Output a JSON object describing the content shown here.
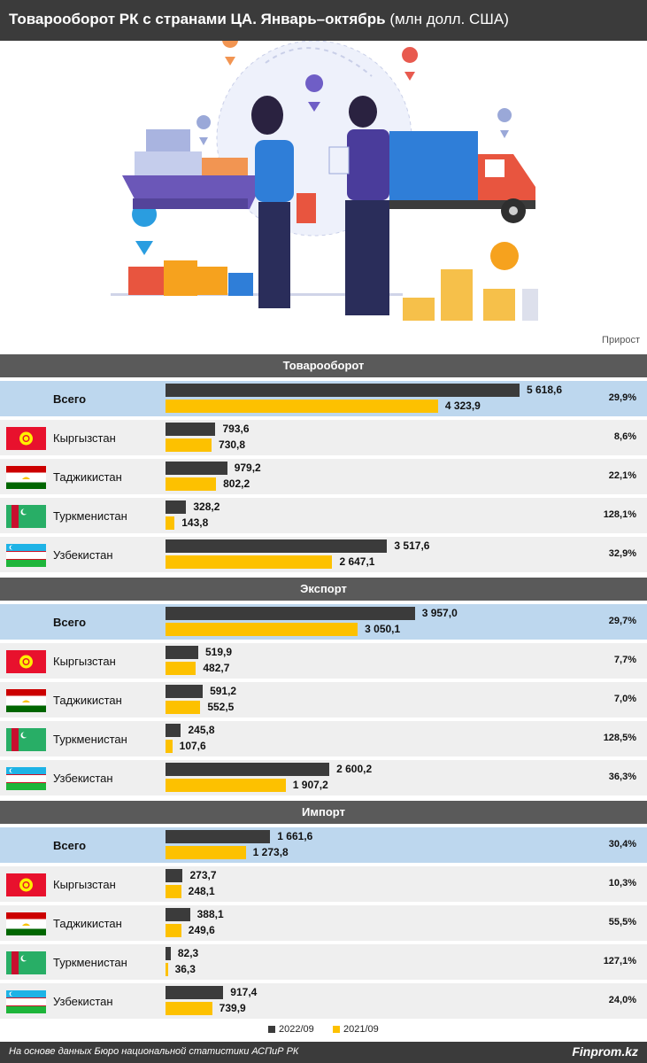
{
  "header": {
    "title": "Товарооборот РК с странами ЦА. Январь–октябрь",
    "unit": "(млн долл. США)"
  },
  "growth_label": "Прирост",
  "legend": {
    "series_a": "2022/09",
    "series_b": "2021/09"
  },
  "footer": {
    "source": "На основе данных Бюро национальной статистики АСПиР РК",
    "brand": "Finprom.kz"
  },
  "colors": {
    "series_a": "#3b3b3b",
    "series_b": "#fdc100",
    "total_row": "#bdd7ee",
    "row": "#efefef",
    "section": "#5a5a5a"
  },
  "chart_data": {
    "type": "bar",
    "orientation": "horizontal",
    "series_names": [
      "2022/09",
      "2021/09"
    ],
    "sections": [
      {
        "title": "Товарооборот",
        "rows": [
          {
            "label": "Всего",
            "total": true,
            "flag": "",
            "v2022": 5618.6,
            "v2021": 4323.9,
            "v2022_label": "5 618,6",
            "v2021_label": "4 323,9",
            "growth": "29,9%"
          },
          {
            "label": "Кыргызстан",
            "flag": "kg",
            "v2022": 793.6,
            "v2021": 730.8,
            "v2022_label": "793,6",
            "v2021_label": "730,8",
            "growth": "8,6%"
          },
          {
            "label": "Таджикистан",
            "flag": "tj",
            "v2022": 979.2,
            "v2021": 802.2,
            "v2022_label": "979,2",
            "v2021_label": "802,2",
            "growth": "22,1%"
          },
          {
            "label": "Туркменистан",
            "flag": "tm",
            "v2022": 328.2,
            "v2021": 143.8,
            "v2022_label": "328,2",
            "v2021_label": "143,8",
            "growth": "128,1%"
          },
          {
            "label": "Узбекистан",
            "flag": "uz",
            "v2022": 3517.6,
            "v2021": 2647.1,
            "v2022_label": "3 517,6",
            "v2021_label": "2 647,1",
            "growth": "32,9%"
          }
        ]
      },
      {
        "title": "Экспорт",
        "rows": [
          {
            "label": "Всего",
            "total": true,
            "flag": "",
            "v2022": 3957.0,
            "v2021": 3050.1,
            "v2022_label": "3 957,0",
            "v2021_label": "3 050,1",
            "growth": "29,7%"
          },
          {
            "label": "Кыргызстан",
            "flag": "kg",
            "v2022": 519.9,
            "v2021": 482.7,
            "v2022_label": "519,9",
            "v2021_label": "482,7",
            "growth": "7,7%"
          },
          {
            "label": "Таджикистан",
            "flag": "tj",
            "v2022": 591.2,
            "v2021": 552.5,
            "v2022_label": "591,2",
            "v2021_label": "552,5",
            "growth": "7,0%"
          },
          {
            "label": "Туркменистан",
            "flag": "tm",
            "v2022": 245.8,
            "v2021": 107.6,
            "v2022_label": "245,8",
            "v2021_label": "107,6",
            "growth": "128,5%"
          },
          {
            "label": "Узбекистан",
            "flag": "uz",
            "v2022": 2600.2,
            "v2021": 1907.2,
            "v2022_label": "2 600,2",
            "v2021_label": "1 907,2",
            "growth": "36,3%"
          }
        ]
      },
      {
        "title": "Импорт",
        "rows": [
          {
            "label": "Всего",
            "total": true,
            "flag": "",
            "v2022": 1661.6,
            "v2021": 1273.8,
            "v2022_label": "1 661,6",
            "v2021_label": "1 273,8",
            "growth": "30,4%"
          },
          {
            "label": "Кыргызстан",
            "flag": "kg",
            "v2022": 273.7,
            "v2021": 248.1,
            "v2022_label": "273,7",
            "v2021_label": "248,1",
            "growth": "10,3%"
          },
          {
            "label": "Таджикистан",
            "flag": "tj",
            "v2022": 388.1,
            "v2021": 249.6,
            "v2022_label": "388,1",
            "v2021_label": "249,6",
            "growth": "55,5%"
          },
          {
            "label": "Туркменистан",
            "flag": "tm",
            "v2022": 82.3,
            "v2021": 36.3,
            "v2022_label": "82,3",
            "v2021_label": "36,3",
            "growth": "127,1%"
          },
          {
            "label": "Узбекистан",
            "flag": "uz",
            "v2022": 917.4,
            "v2021": 739.9,
            "v2022_label": "917,4",
            "v2021_label": "739,9",
            "growth": "24,0%"
          }
        ]
      }
    ]
  }
}
